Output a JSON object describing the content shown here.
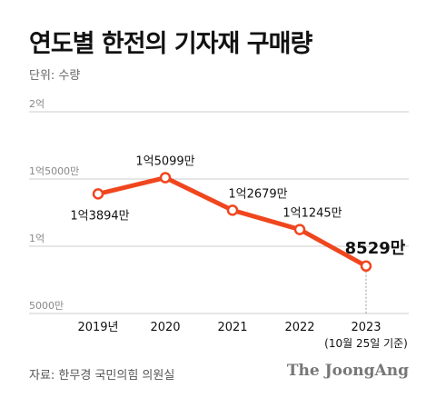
{
  "header": {
    "title": "연도별 한전의 기자재 구매량",
    "unit": "단위: 수량"
  },
  "footer": {
    "source": "자료: 한무경 국민의힘 의원실",
    "brand": "The JoongAng"
  },
  "colors": {
    "line": "#f0461e",
    "grid": "#cccccc",
    "axis_text": "#888888",
    "text": "#111111"
  },
  "chart_data": {
    "type": "line",
    "x": [
      "2019년",
      "2020",
      "2021",
      "2022",
      "2023"
    ],
    "x_sub_label": "(10월 25일 기준)",
    "values": [
      138940000,
      150990000,
      126790000,
      112450000,
      85290000
    ],
    "data_labels": [
      "1억3894만",
      "1억5099만",
      "1억2679만",
      "1억1245만",
      "8529만"
    ],
    "y_ticks": [
      {
        "value": 200000000,
        "label": "2억"
      },
      {
        "value": 150000000,
        "label": "1억5000만"
      },
      {
        "value": 100000000,
        "label": "1억"
      },
      {
        "value": 50000000,
        "label": "5000만"
      }
    ],
    "ylim": [
      50000000,
      200000000
    ],
    "grid": true,
    "title": "연도별 한전의 기자재 구매량",
    "ylabel": "단위: 수량"
  }
}
